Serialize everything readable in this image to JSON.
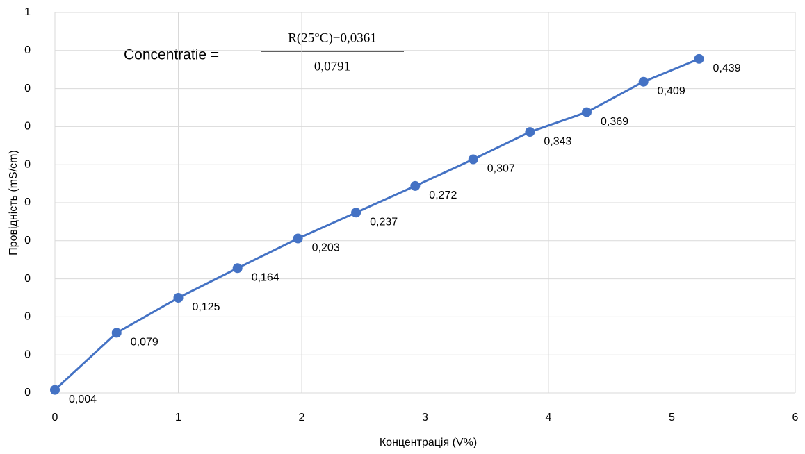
{
  "chart_data": {
    "type": "line",
    "x_label": "Концентрація (V%)",
    "y_label": "Провідність  (mS/cm)",
    "annotation": {
      "prefix": "Concentratie =",
      "numerator": "R(25°C)−0,0361",
      "denominator": "0,0791"
    },
    "x": [
      0,
      0.5,
      1.0,
      1.48,
      1.97,
      2.44,
      2.92,
      3.39,
      3.85,
      4.31,
      4.77,
      5.22
    ],
    "values": [
      0.004,
      0.079,
      0.125,
      0.164,
      0.203,
      0.237,
      0.272,
      0.307,
      0.343,
      0.369,
      0.409,
      0.439
    ],
    "value_labels": [
      "0,004",
      "0,079",
      "0,125",
      "0,164",
      "0,203",
      "0,237",
      "0,272",
      "0,307",
      "0,343",
      "0,369",
      "0,409",
      "0,439"
    ],
    "color": "#4472c4",
    "xlim": [
      0,
      6
    ],
    "xticks": [
      0,
      1,
      2,
      3,
      4,
      5,
      6
    ],
    "ylim": [
      0,
      0.5
    ],
    "yticks": [
      0,
      {
        "value": 0.05,
        "label": "0"
      },
      {
        "value": 0.1,
        "label": "0"
      },
      {
        "value": 0.15,
        "label": "0"
      },
      {
        "value": 0.2,
        "label": "0"
      },
      {
        "value": 0.25,
        "label": "0"
      },
      {
        "value": 0.3,
        "label": "0"
      },
      {
        "value": 0.35,
        "label": "0"
      },
      {
        "value": 0.4,
        "label": "0"
      },
      {
        "value": 0.45,
        "label": "0"
      },
      {
        "value": 0.5,
        "label": "1"
      }
    ],
    "grid": true
  }
}
